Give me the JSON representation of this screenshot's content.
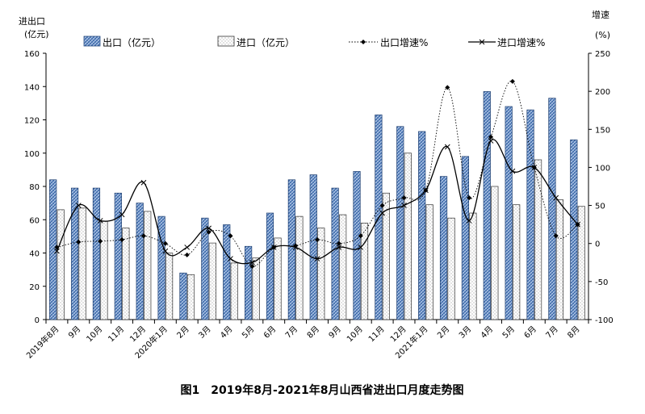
{
  "chart_data": {
    "type": "bar",
    "caption": "图1　2019年8月-2021年8月山西省进出口月度走势图",
    "y_left_label_line1": "进出口",
    "y_left_label_line2": "(亿元)",
    "y_right_label_line1": "增速",
    "y_right_label_line2": "(%)",
    "categories": [
      "2019年8月",
      "9月",
      "10月",
      "11月",
      "12月",
      "2020年1月",
      "2月",
      "3月",
      "4月",
      "5月",
      "6月",
      "7月",
      "8月",
      "9月",
      "10月",
      "11月",
      "12月",
      "2021年1月",
      "2月",
      "3月",
      "4月",
      "5月",
      "6月",
      "7月",
      "8月"
    ],
    "ylim_left": [
      0,
      160
    ],
    "yticks_left": [
      0,
      20,
      40,
      60,
      80,
      100,
      120,
      140,
      160
    ],
    "ylim_right": [
      -100,
      250
    ],
    "yticks_right": [
      -100,
      -50,
      0,
      50,
      100,
      150,
      200,
      250
    ],
    "grid": false,
    "legend_position": "top",
    "series": [
      {
        "name": "出口（亿元）",
        "kind": "bar",
        "axis": "left",
        "color": "#3a67a8",
        "values": [
          84,
          79,
          79,
          76,
          70,
          62,
          28,
          61,
          57,
          44,
          64,
          84,
          87,
          79,
          89,
          123,
          116,
          113,
          86,
          98,
          137,
          128,
          126,
          133,
          108
        ]
      },
      {
        "name": "进口（亿元）",
        "kind": "bar",
        "axis": "left",
        "color": "#ffffff",
        "values": [
          66,
          67,
          59,
          55,
          65,
          40,
          27,
          46,
          34,
          37,
          49,
          62,
          55,
          63,
          58,
          76,
          100,
          69,
          61,
          64,
          80,
          69,
          96,
          72,
          68
        ]
      },
      {
        "name": "出口增速%",
        "kind": "line",
        "axis": "right",
        "color": "#000000",
        "line_style": "dotted",
        "marker": "diamond",
        "values": [
          -5,
          2,
          3,
          5,
          10,
          0,
          -15,
          15,
          10,
          -30,
          -5,
          -3,
          5,
          0,
          10,
          50,
          60,
          70,
          205,
          60,
          140,
          213,
          100,
          10,
          25
        ]
      },
      {
        "name": "进口增速%",
        "kind": "line",
        "axis": "right",
        "color": "#000000",
        "line_style": "solid",
        "marker": "x",
        "values": [
          -10,
          50,
          30,
          38,
          80,
          -10,
          -5,
          20,
          -20,
          -25,
          -5,
          -5,
          -20,
          -5,
          -5,
          40,
          50,
          70,
          127,
          30,
          135,
          95,
          100,
          60,
          25
        ]
      }
    ]
  }
}
